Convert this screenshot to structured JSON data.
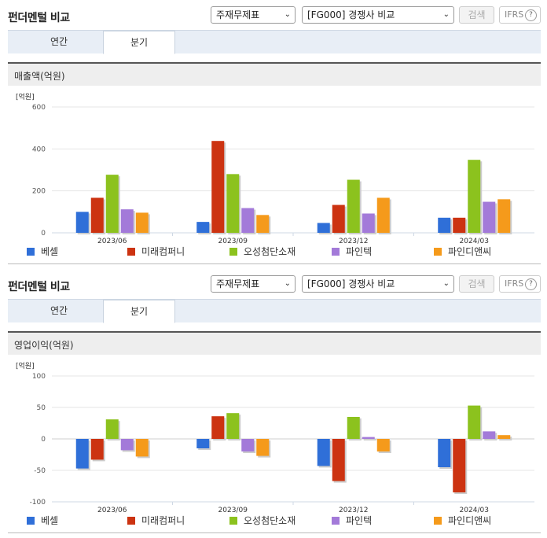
{
  "header": {
    "title": "펀더멘털 비교",
    "select1": "주재무제표",
    "select2": "[FG000] 경쟁사 비교",
    "search_label": "검색",
    "ifrs_label": "IFRS",
    "ifrs_help": "?"
  },
  "tabs": [
    {
      "label": "연간",
      "active": false
    },
    {
      "label": "분기",
      "active": true
    }
  ],
  "colors": {
    "베셀": "#2f6fd8",
    "미래컴퍼니": "#cc3311",
    "오성첨단소재": "#8cc21e",
    "파인텍": "#a37ad9",
    "파인디앤씨": "#f59a1b"
  },
  "charts": [
    {
      "section_title": "매출액(억원)",
      "chart_data": {
        "type": "bar",
        "unit_label": "[억원]",
        "categories": [
          "2023/06",
          "2023/09",
          "2023/12",
          "2024/03"
        ],
        "ylim": [
          0,
          600
        ],
        "yticks": [
          "0",
          "200",
          "400",
          "600"
        ],
        "series": [
          {
            "name": "베셀",
            "values": [
              100,
              52,
              47,
              72
            ]
          },
          {
            "name": "미래컴퍼니",
            "values": [
              167,
              438,
              133,
              72
            ]
          },
          {
            "name": "오성첨단소재",
            "values": [
              277,
              280,
              253,
              348
            ]
          },
          {
            "name": "파인텍",
            "values": [
              112,
              118,
              92,
              148
            ]
          },
          {
            "name": "파인디앤씨",
            "values": [
              96,
              85,
              167,
              160
            ]
          }
        ],
        "legend": "bottom"
      }
    },
    {
      "section_title": "영업이익(억원)",
      "chart_data": {
        "type": "bar",
        "unit_label": "[억원]",
        "categories": [
          "2023/06",
          "2023/09",
          "2023/12",
          "2024/03"
        ],
        "ylim": [
          -100,
          100
        ],
        "yticks": [
          "-100",
          "-50",
          "0",
          "50",
          "100"
        ],
        "series": [
          {
            "name": "베셀",
            "values": [
              -47,
              -15,
              -43,
              -45
            ]
          },
          {
            "name": "미래컴퍼니",
            "values": [
              -33,
              36,
              -67,
              -85
            ]
          },
          {
            "name": "오성첨단소재",
            "values": [
              31,
              41,
              35,
              53
            ]
          },
          {
            "name": "파인텍",
            "values": [
              -18,
              -20,
              3,
              12
            ]
          },
          {
            "name": "파인디앤씨",
            "values": [
              -28,
              -27,
              -20,
              6
            ]
          }
        ],
        "legend": "bottom"
      }
    }
  ]
}
